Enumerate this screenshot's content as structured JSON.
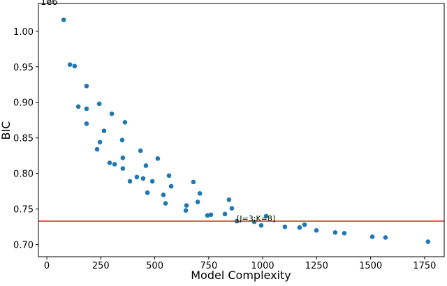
{
  "chart_data": {
    "type": "scatter",
    "x_label": "Model Complexity",
    "y_label": "BIC",
    "y_offset_label": "1e6",
    "color": "#1f77b4",
    "x": [
      78,
      107,
      129,
      146,
      184,
      184,
      184,
      243,
      246,
      233,
      265,
      291,
      301,
      314,
      349,
      352,
      352,
      362,
      385,
      417,
      434,
      446,
      459,
      466,
      489,
      514,
      540,
      550,
      566,
      576,
      644,
      647,
      679,
      699,
      709,
      744,
      760,
      825,
      844,
      857,
      880,
      961,
      993,
      1016,
      1103,
      1171,
      1194,
      1249,
      1336,
      1378,
      1508,
      1569,
      1766
    ],
    "values": [
      1.016,
      0.953,
      0.951,
      0.894,
      0.923,
      0.891,
      0.87,
      0.898,
      0.844,
      0.834,
      0.86,
      0.815,
      0.884,
      0.813,
      0.847,
      0.822,
      0.807,
      0.872,
      0.789,
      0.795,
      0.832,
      0.793,
      0.811,
      0.773,
      0.789,
      0.821,
      0.77,
      0.758,
      0.797,
      0.782,
      0.748,
      0.755,
      0.788,
      0.76,
      0.772,
      0.741,
      0.742,
      0.743,
      0.763,
      0.751,
      0.733,
      0.732,
      0.727,
      0.74,
      0.725,
      0.724,
      0.728,
      0.72,
      0.717,
      0.716,
      0.711,
      0.71,
      0.704
    ],
    "hline": {
      "y": 0.733,
      "color": "#e8211b"
    },
    "annotation": {
      "text": "[J=3;K=8]",
      "x": 880,
      "y": 0.733
    },
    "xlim": [
      -39,
      1841
    ],
    "ylim": [
      0.683,
      1.039
    ],
    "xticks": [
      0,
      250,
      500,
      750,
      1000,
      1250,
      1500,
      1750
    ],
    "yticks": [
      {
        "value": 0.7,
        "label": "0.70"
      },
      {
        "value": 0.75,
        "label": "0.75"
      },
      {
        "value": 0.8,
        "label": "0.80"
      },
      {
        "value": 0.85,
        "label": "0.85"
      },
      {
        "value": 0.9,
        "label": "0.90"
      },
      {
        "value": 0.95,
        "label": "0.95"
      },
      {
        "value": 1.0,
        "label": "1.00"
      }
    ]
  }
}
